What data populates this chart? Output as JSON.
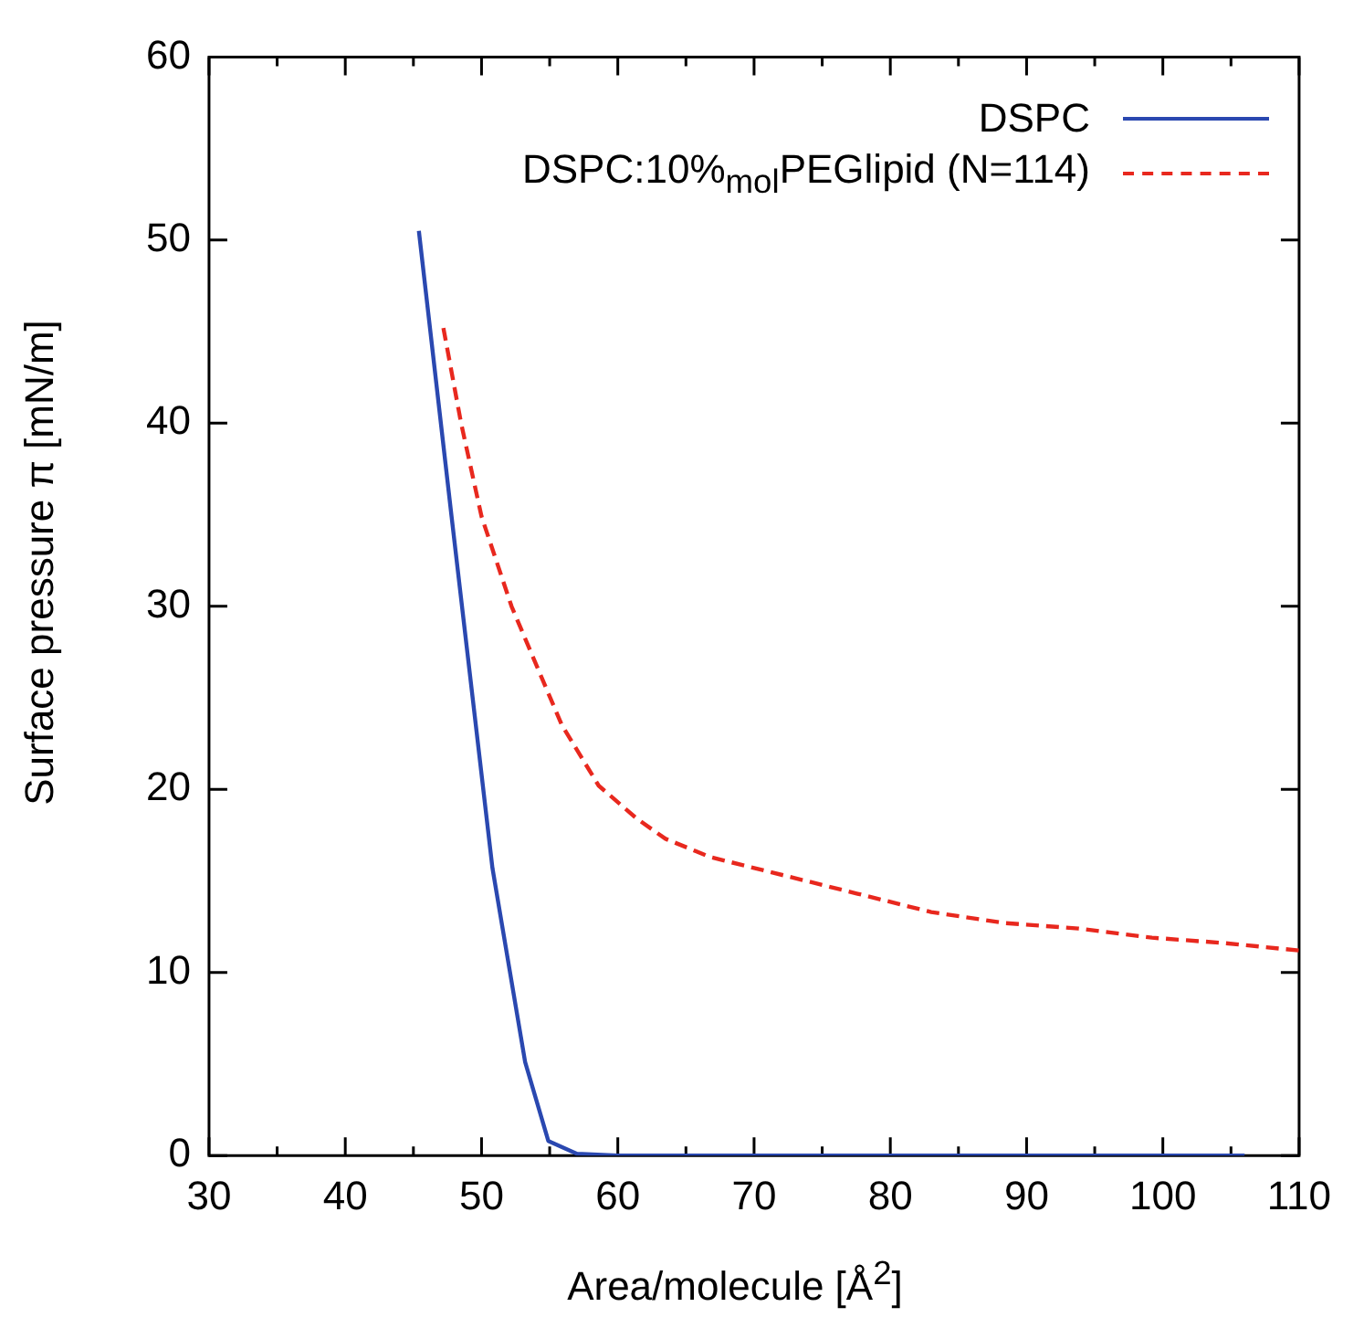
{
  "chart_data": {
    "type": "line",
    "xlabel": "Area/molecule [Å$^{2}$]",
    "ylabel": "Surface pressure π [mN/m]",
    "xlim": [
      30,
      110
    ],
    "xticks": [
      30,
      40,
      50,
      60,
      70,
      80,
      90,
      100,
      110
    ],
    "ylim": [
      0,
      60
    ],
    "yticks": [
      0,
      10,
      20,
      30,
      40,
      50,
      60
    ],
    "grid": false,
    "legend": "top right",
    "marker": "none",
    "series": [
      {
        "name": "DSPC",
        "color": "#2a48b0",
        "line_style": "solid",
        "x": [
          45.4,
          47.8,
          50.8,
          53.2,
          54.9,
          57,
          60,
          70,
          80,
          90,
          100,
          106
        ],
        "values": [
          50.5,
          34.9,
          15.7,
          5.1,
          0.8,
          0.1,
          0,
          0,
          0,
          0,
          0,
          0
        ]
      },
      {
        "name": "DSPC:10%$_{mol}$PEGlipid (N=114)",
        "color": "#e8281e",
        "line_style": "dashed",
        "x": [
          47.2,
          48.5,
          50,
          52.2,
          54.3,
          55.9,
          58.6,
          61.4,
          63.5,
          66.8,
          72.2,
          77.6,
          83,
          88.4,
          93.8,
          99.2,
          104.6,
          110
        ],
        "values": [
          45.2,
          40,
          34.9,
          30,
          26.3,
          23.5,
          20.2,
          18.4,
          17.3,
          16.3,
          15.3,
          14.3,
          13.3,
          12.7,
          12.4,
          11.9,
          11.6,
          11.2
        ]
      }
    ]
  }
}
